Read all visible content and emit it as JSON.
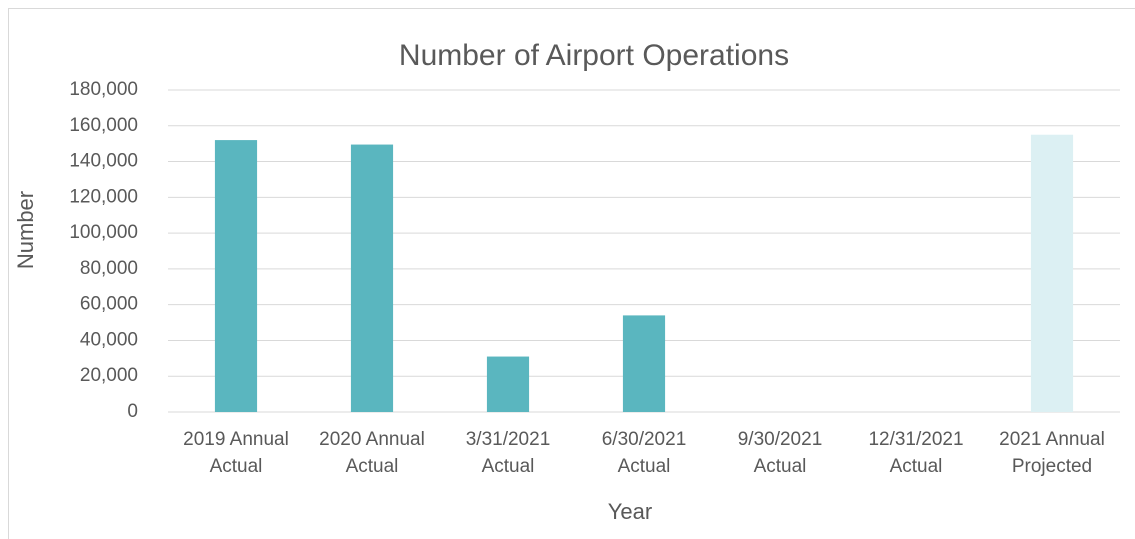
{
  "chart_data": {
    "type": "bar",
    "title": "Number of Airport Operations",
    "x_label": "Year",
    "y_label": "Number",
    "categories": [
      "2019 Annual\nActual",
      "2020 Annual\nActual",
      "3/31/2021\nActual",
      "6/30/2021\nActual",
      "9/30/2021\nActual",
      "12/31/2021\nActual",
      "2021 Annual\nProjected"
    ],
    "values": [
      152000,
      149500,
      31000,
      54000,
      null,
      null,
      155000
    ],
    "colors": [
      "#5ab6bf",
      "#5ab6bf",
      "#5ab6bf",
      "#5ab6bf",
      "#5ab6bf",
      "#5ab6bf",
      "#dcf0f3"
    ],
    "ylim": [
      0,
      180000
    ],
    "yticks": [
      0,
      {
        "value": 20000,
        "label": "20,000"
      },
      {
        "value": 40000,
        "label": "40,000"
      },
      {
        "value": 60000,
        "label": "60,000"
      },
      {
        "value": 80000,
        "label": "80,000"
      },
      {
        "value": 100000,
        "label": "100,000"
      },
      {
        "value": 120000,
        "label": "120,000"
      },
      {
        "value": 140000,
        "label": "140,000"
      },
      {
        "value": 160000,
        "label": "160,000"
      },
      {
        "value": 180000,
        "label": "180,000"
      }
    ],
    "grid": true
  }
}
